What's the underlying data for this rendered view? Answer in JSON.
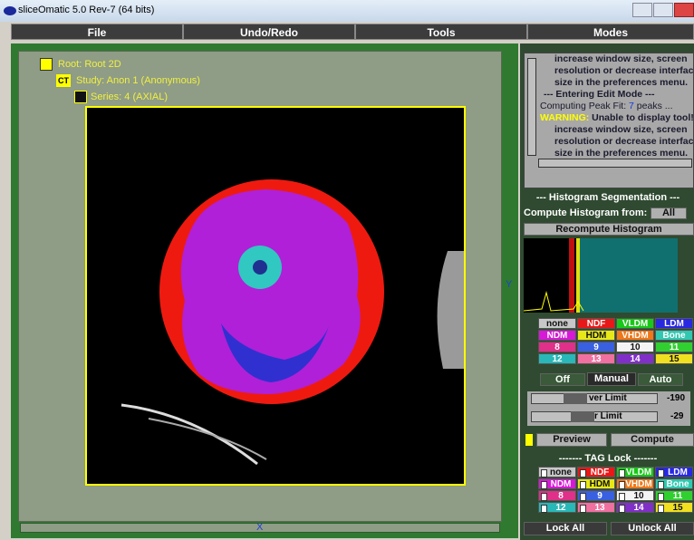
{
  "window": {
    "title": "sliceOmatic 5.0 Rev-7 (64 bits)"
  },
  "menu": [
    "File",
    "Undo/Redo",
    "Tools",
    "Modes"
  ],
  "tree": [
    "Root: Root 2D",
    "Study: Anon 1 (Anonymous)",
    "Series: 4 (AXIAL)"
  ],
  "tree_icon": "CT",
  "viewer": {
    "y_label": "Y",
    "x_label": "X"
  },
  "log": [
    [
      "increase window size, screen"
    ],
    [
      "resolution or decrease interface"
    ],
    [
      "size in the preferences menu."
    ],
    [
      "--- Entering Edit Mode ---"
    ],
    [
      "Computing Peak Fit: ",
      "7",
      " peaks ..."
    ],
    [
      "WARNING:",
      " Unable to display tool!"
    ],
    [
      "increase window size, screen"
    ],
    [
      "resolution or decrease interface"
    ],
    [
      "size in the preferences menu."
    ]
  ],
  "histogram": {
    "title": "--- Histogram Segmentation ---",
    "compute_from": "Compute Histogram from:",
    "source": "All",
    "recompute": "Recompute Histogram"
  },
  "tags": [
    {
      "label": "none",
      "color": "#c8c8c8"
    },
    {
      "label": "NDF",
      "color": "#e81818"
    },
    {
      "label": "VLDM",
      "color": "#18c818"
    },
    {
      "label": "LDM",
      "color": "#2828e0"
    },
    {
      "label": "NDM",
      "color": "#d818d8"
    },
    {
      "label": "HDM",
      "color": "#e8e818"
    },
    {
      "label": "VHDM",
      "color": "#f07818"
    },
    {
      "label": "Bone",
      "color": "#30c8b0"
    },
    {
      "label": "8",
      "color": "#e0308a"
    },
    {
      "label": "9",
      "color": "#3860e0"
    },
    {
      "label": "10",
      "color": "#f4f4f4"
    },
    {
      "label": "11",
      "color": "#30d030"
    },
    {
      "label": "12",
      "color": "#28b8b8"
    },
    {
      "label": "13",
      "color": "#f070a0"
    },
    {
      "label": "14",
      "color": "#8030c8"
    },
    {
      "label": "15",
      "color": "#f0e020"
    }
  ],
  "modes": [
    "Off",
    "Manual",
    "Auto"
  ],
  "limits": [
    {
      "label": "ver Limit",
      "value": "-190"
    },
    {
      "label": "r Limit",
      "value": "-29"
    }
  ],
  "actions": [
    "Preview",
    "Compute"
  ],
  "tag_lock": {
    "title": "------- TAG Lock -------",
    "lock_all": "Lock All",
    "unlock_all": "Unlock All"
  }
}
